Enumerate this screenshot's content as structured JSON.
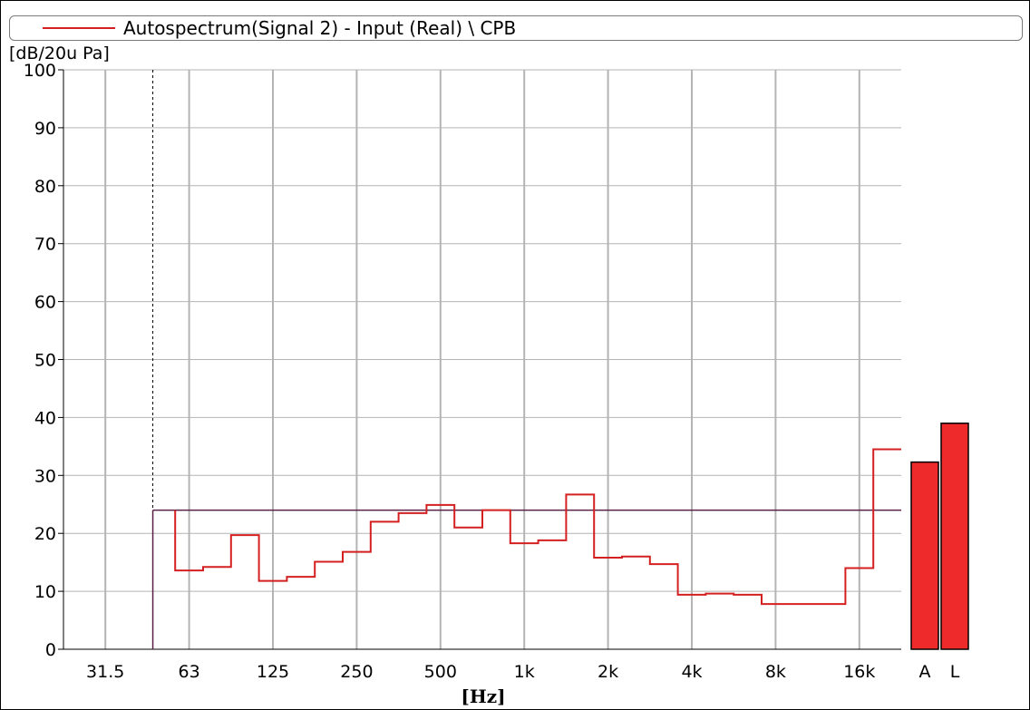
{
  "legend": {
    "label": "Autospectrum(Signal 2) - Input (Real) \\ CPB",
    "line_color": "#d42020"
  },
  "chart_data": {
    "type": "bar",
    "title": "",
    "ylabel": "[dB/20u Pa]",
    "xlabel": "[Hz]",
    "ylim": [
      0,
      100
    ],
    "y_ticks": [
      0,
      10,
      20,
      30,
      40,
      50,
      60,
      70,
      80,
      90,
      100
    ],
    "x_tick_labels": [
      "31.5",
      "63",
      "125",
      "250",
      "500",
      "1k",
      "2k",
      "4k",
      "8k",
      "16k"
    ],
    "x_tick_bands": [
      15,
      18,
      21,
      24,
      27,
      30,
      33,
      36,
      39,
      42
    ],
    "grid": true,
    "grid_color": "#b4b4b4",
    "band_range": [
      13.5,
      43.5
    ],
    "spectrum_color": "#d42020",
    "spectrum": {
      "name": "Autospectrum(Signal 2) - Input (Real) \\ CPB",
      "bands": [
        18,
        19,
        20,
        21,
        22,
        23,
        24,
        25,
        26,
        27,
        28,
        29,
        30,
        31,
        32,
        33,
        34,
        35,
        36,
        37,
        38,
        39,
        40,
        41,
        42,
        43
      ],
      "values": [
        13.6,
        14.2,
        19.7,
        11.8,
        12.5,
        15.1,
        16.8,
        22.0,
        23.5,
        24.9,
        21.0,
        24.0,
        18.3,
        18.8,
        26.7,
        15.8,
        16.0,
        14.7,
        9.4,
        9.6,
        9.4,
        7.8,
        7.8,
        7.8,
        14.0,
        34.5
      ]
    },
    "reference_line": {
      "value": 24,
      "color": "#5a2045"
    },
    "cursor": {
      "band": 16.7,
      "color": "#000000"
    },
    "total_bars": {
      "categories": [
        "A",
        "L"
      ],
      "values": [
        32.3,
        39.0
      ],
      "color": "#ee2a2a"
    }
  }
}
